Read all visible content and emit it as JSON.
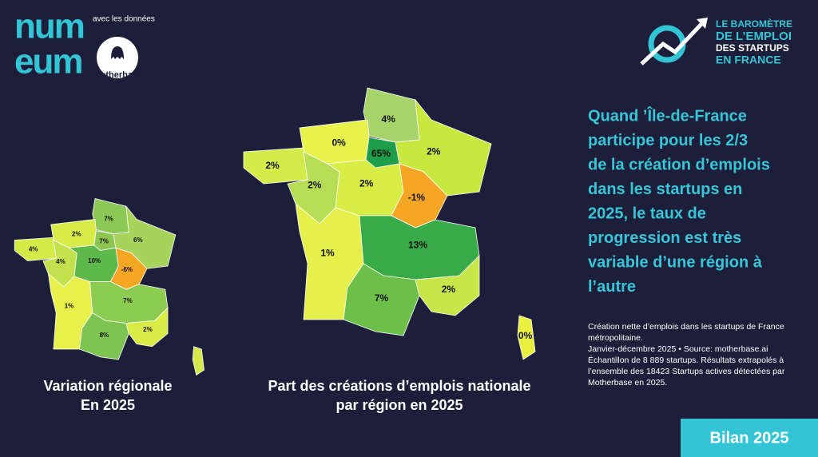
{
  "header": {
    "logo_lines": [
      "num",
      "eum"
    ],
    "partner_caption": "avec les données",
    "partner_name": "motherbase",
    "barometer_lines": [
      "LE BAROMÈTRE",
      "DE L’EMPLOI",
      "DES STARTUPS",
      "EN FRANCE"
    ]
  },
  "headline_lines": [
    "Quand ’Île-de-France",
    "participe pour les 2/3",
    "de la création d’emplois",
    "dans les startups en",
    "2025, le taux de",
    "progression est très",
    "variable d’une région à",
    "l’autre"
  ],
  "note_lines": [
    "Création nette d’emplois dans les startups de France",
    "métropolitaine.",
    "Janvier-décembre 2025 • Source: motherbase.ai",
    "Échantillon de 8 889 startups. Résultats extrapolés à",
    "l’ensemble des 18423 Startups actives détectées par",
    "Motherbase en 2025."
  ],
  "badge": "Bilan 2025",
  "map_small": {
    "title_lines": [
      "Variation régionale",
      "En 2025"
    ],
    "regions": [
      {
        "label": "7%",
        "color": "#8bc856"
      },
      {
        "label": "2%",
        "color": "#d8ec49"
      },
      {
        "label": "7%",
        "color": "#8ec653"
      },
      {
        "label": "6%",
        "color": "#a6d35a"
      },
      {
        "label": "4%",
        "color": "#d2eb47"
      },
      {
        "label": "4%",
        "color": "#c1e24c"
      },
      {
        "label": "10%",
        "color": "#5fb84a"
      },
      {
        "label": "-6%",
        "color": "#f5a623"
      },
      {
        "label": "1%",
        "color": "#e8f04a"
      },
      {
        "label": "7%",
        "color": "#8ccc52"
      },
      {
        "label": "8%",
        "color": "#7ec453"
      },
      {
        "label": "2%",
        "color": "#d8ec45"
      },
      {
        "label": null,
        "color": "#d4ea4a"
      }
    ]
  },
  "map_large": {
    "title_lines": [
      "Part des créations d’emplois nationale",
      "par région en 2025"
    ],
    "regions": [
      {
        "label": "4%",
        "color": "#a6d36a"
      },
      {
        "label": "0%",
        "color": "#e7f24a"
      },
      {
        "label": "65%",
        "color": "#1e9e4a"
      },
      {
        "label": "2%",
        "color": "#c9e83f"
      },
      {
        "label": "2%",
        "color": "#d4ec4a"
      },
      {
        "label": "2%",
        "color": "#b7dd55"
      },
      {
        "label": "2%",
        "color": "#d7ed45"
      },
      {
        "label": "-1%",
        "color": "#f5a623"
      },
      {
        "label": "1%",
        "color": "#e6f04a"
      },
      {
        "label": "13%",
        "color": "#38ab48"
      },
      {
        "label": "7%",
        "color": "#6cc04a"
      },
      {
        "label": "2%",
        "color": "#c7e64a"
      },
      {
        "label": "0%",
        "color": "#e8ef3c"
      }
    ]
  }
}
